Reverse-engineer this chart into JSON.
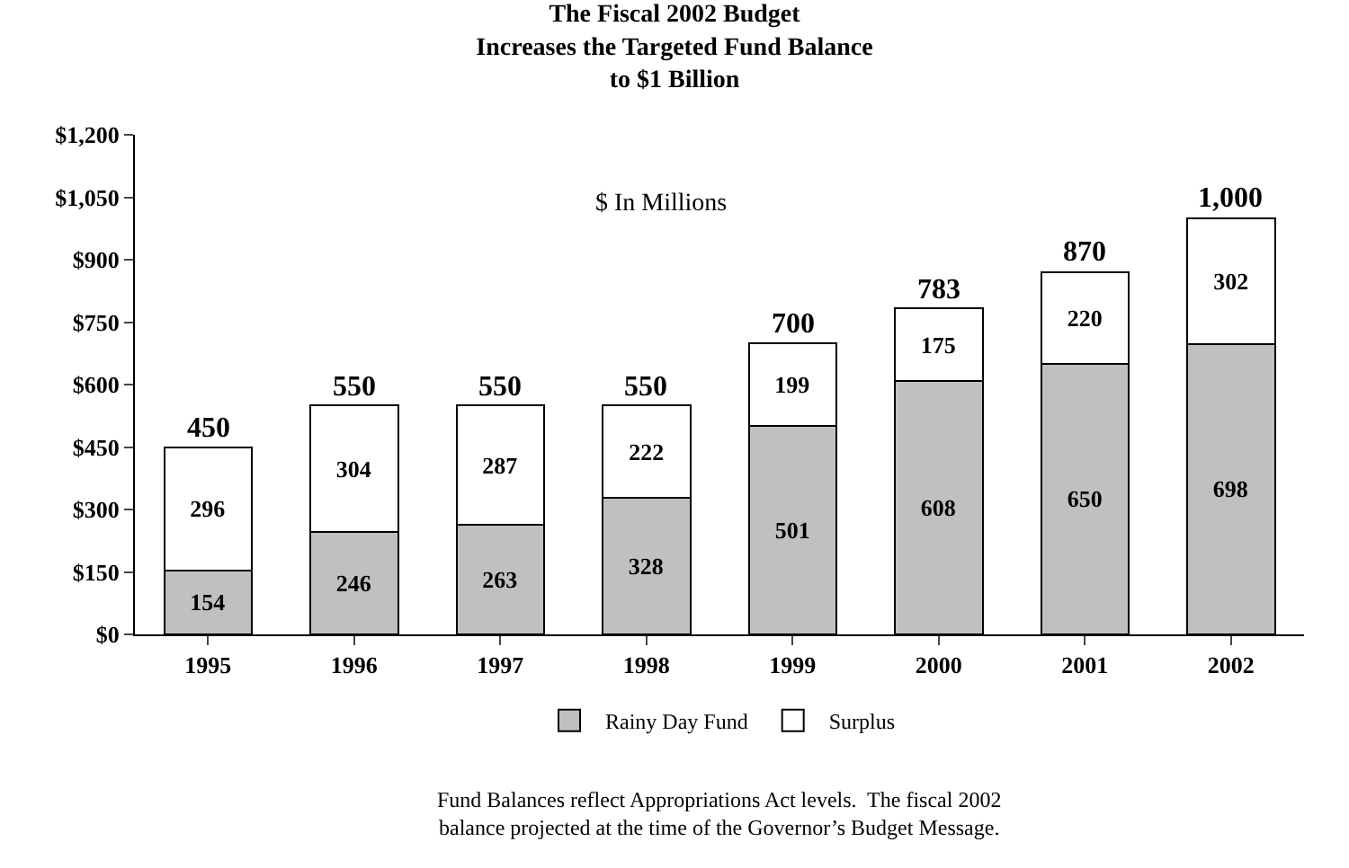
{
  "chart_data": {
    "type": "bar",
    "title": "The Fiscal 2002 Budget\nIncreases the Targeted Fund Balance\nto $1 Billion",
    "categories": [
      "1995",
      "1996",
      "1997",
      "1998",
      "1999",
      "2000",
      "2001",
      "2002"
    ],
    "series": [
      {
        "name": "Rainy Day Fund",
        "color": "#c0c0c0",
        "values": [
          154,
          246,
          263,
          328,
          501,
          608,
          650,
          698
        ]
      },
      {
        "name": "Surplus",
        "color": "#ffffff",
        "values": [
          296,
          304,
          287,
          222,
          199,
          175,
          220,
          302
        ]
      }
    ],
    "stacked": true,
    "data_labels": true,
    "totals": [
      "450",
      "550",
      "550",
      "550",
      "700",
      "783",
      "870",
      "1,000"
    ],
    "ylim": [
      0,
      1200
    ],
    "yticks": [
      {
        "value": 0,
        "label": "$0"
      },
      {
        "value": 150,
        "label": "$150"
      },
      {
        "value": 300,
        "label": "$300"
      },
      {
        "value": 450,
        "label": "$450"
      },
      {
        "value": 600,
        "label": "$600"
      },
      {
        "value": 750,
        "label": "$750"
      },
      {
        "value": 900,
        "label": "$900"
      },
      {
        "value": 1050,
        "label": "$1,050"
      },
      {
        "value": 1200,
        "label": "$1,200"
      }
    ],
    "legend": "bottom",
    "annotations": [
      "$ In Millions",
      "Fund Balances reflect Appropriations Act levels.  The fiscal 2002\nbalance projected at the time of the Governor’s Budget Message."
    ]
  }
}
